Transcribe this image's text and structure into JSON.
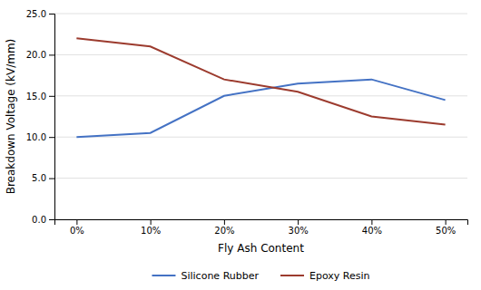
{
  "chart_data": {
    "type": "line",
    "categories": [
      "0%",
      "10%",
      "20%",
      "30%",
      "40%",
      "50%"
    ],
    "series": [
      {
        "name": "Silicone Rubber",
        "color": "#4472C4",
        "values": [
          10.0,
          10.5,
          15.0,
          16.5,
          17.0,
          14.5
        ]
      },
      {
        "name": "Epoxy Resin",
        "color": "#9C3B2E",
        "values": [
          22.0,
          21.0,
          17.0,
          15.5,
          12.5,
          11.5
        ]
      }
    ],
    "x_label": "Fly Ash Content",
    "y_label": "Breakdown Voltage (kV/mm)",
    "ylim": [
      0,
      25
    ],
    "yticks": [
      {
        "value": 0,
        "label": "0.0"
      },
      {
        "value": 5,
        "label": "5.0"
      },
      {
        "value": 10,
        "label": "10.0"
      },
      {
        "value": 15,
        "label": "15.0"
      },
      {
        "value": 20,
        "label": "20.0"
      },
      {
        "value": 25,
        "label": "25.0"
      }
    ],
    "grid": true,
    "legend": "bottom"
  }
}
